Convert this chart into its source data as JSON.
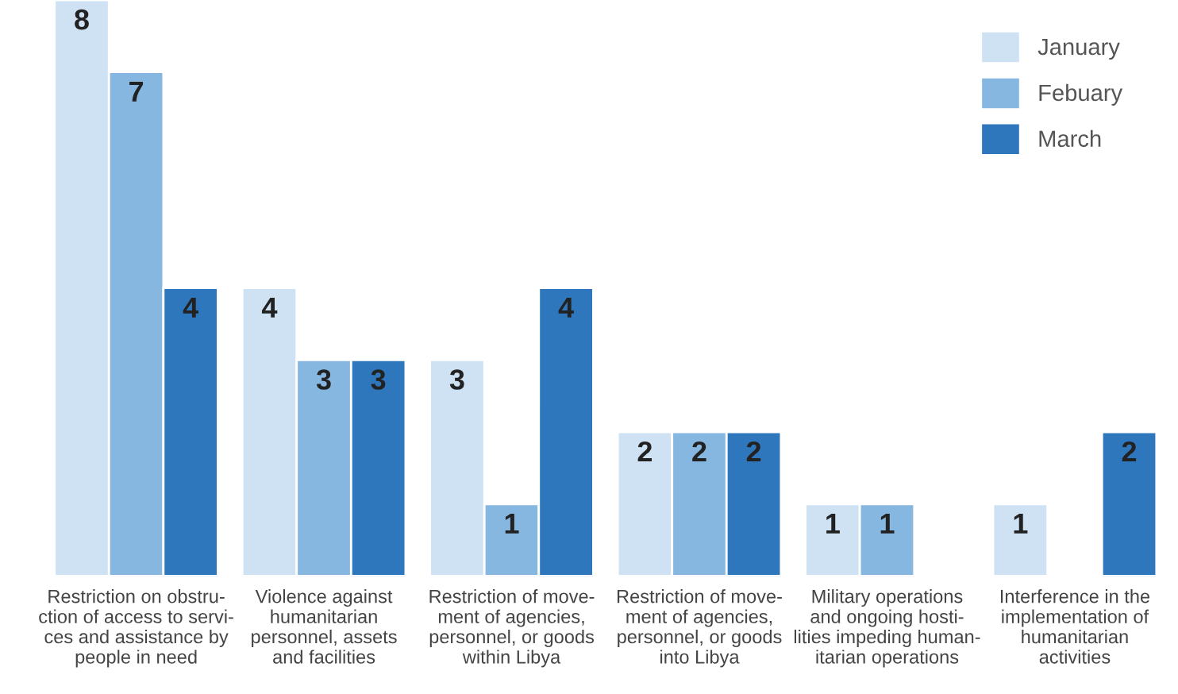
{
  "chart_data": {
    "type": "bar",
    "categories": [
      "Restriction on obstru-\nction of access to servi-\nces and assistance by\npeople in need",
      "Violence against\nhumanitarian\npersonnel, assets\nand facilities",
      "Restriction of move-\nment of agencies,\npersonnel, or goods\nwithin Libya",
      "Restriction of move-\nment of agencies,\npersonnel, or goods\ninto Libya",
      "Military operations\nand ongoing hosti-\nlities impeding human-\nitarian operations",
      "Interference in the\nimplementation of\nhumanitarian\nactivities"
    ],
    "series": [
      {
        "name": "January",
        "color": "#cfe2f3",
        "values": [
          8,
          4,
          3,
          2,
          1,
          1
        ]
      },
      {
        "name": "Febuary",
        "color": "#85b7e1",
        "values": [
          7,
          3,
          1,
          2,
          1,
          null
        ]
      },
      {
        "name": "March",
        "color": "#2f77bd",
        "values": [
          4,
          3,
          4,
          2,
          null,
          2
        ]
      }
    ],
    "data_labels": true,
    "legend": "top right",
    "grid": false
  }
}
